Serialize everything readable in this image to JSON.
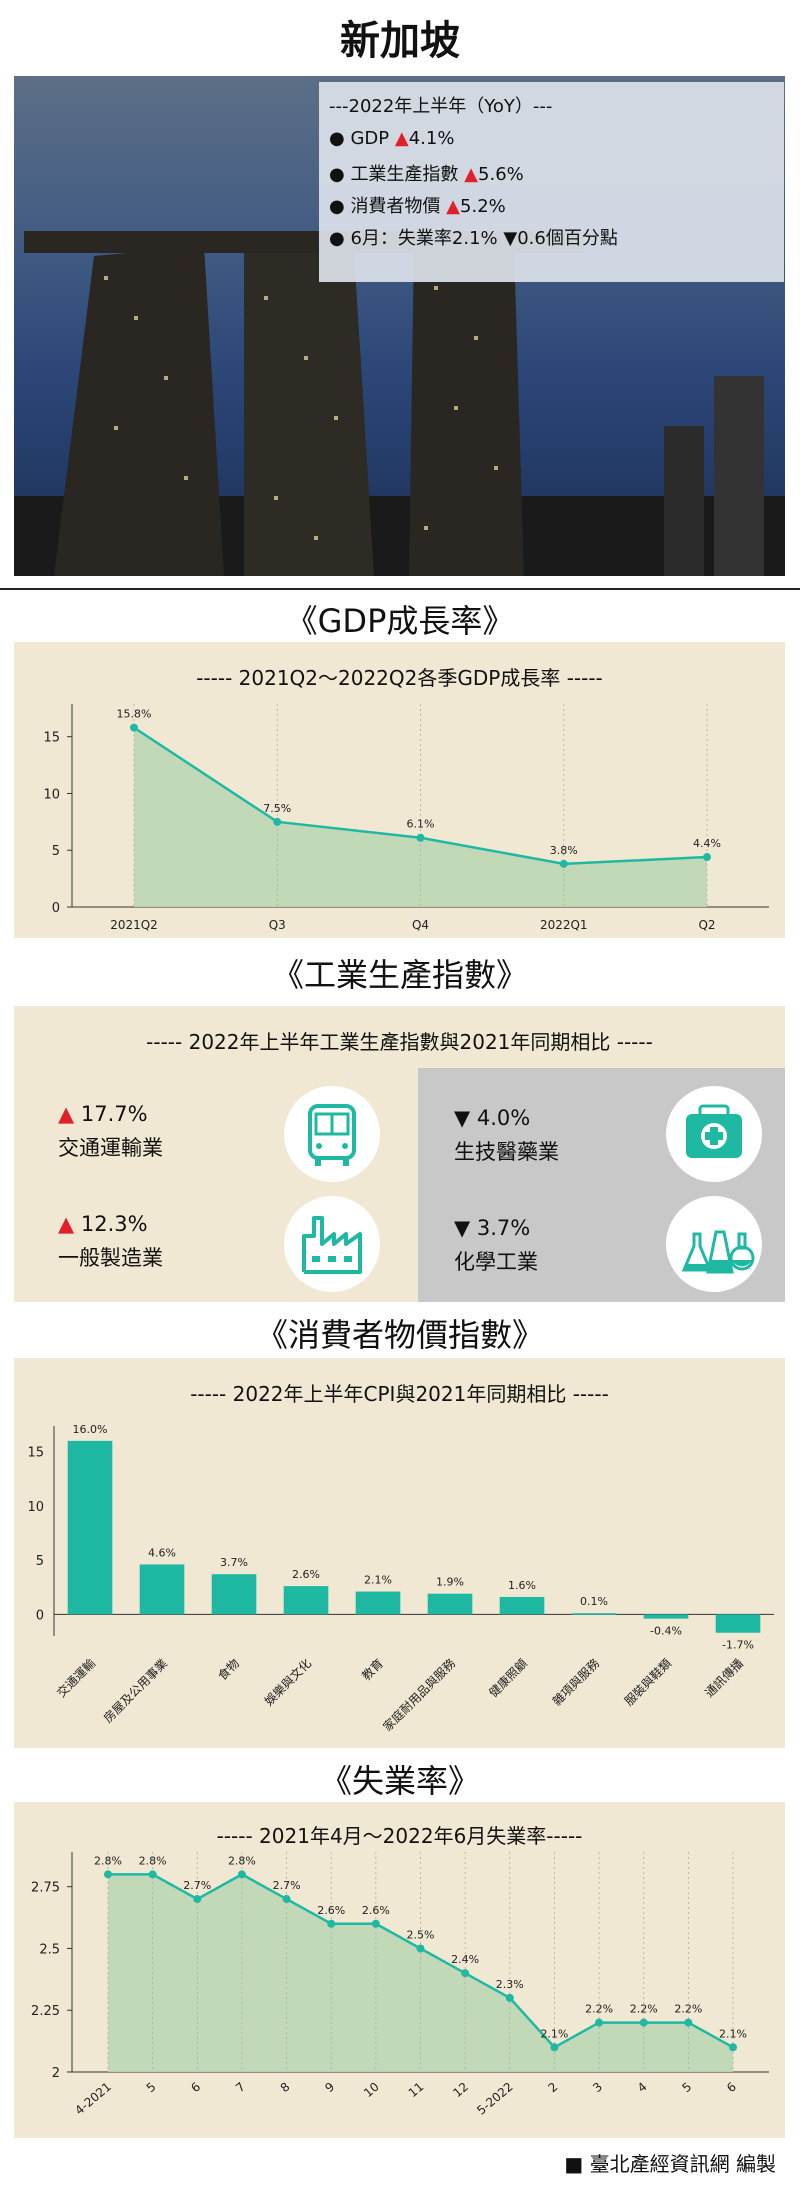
{
  "page_title": "新加坡",
  "summary": {
    "header": "---2022年上半年（YoY）---",
    "items": [
      {
        "label": "GDP",
        "arrow": "▲",
        "value": "4.1%"
      },
      {
        "label": "工業生產指數",
        "arrow": "▲",
        "value": "5.6%"
      },
      {
        "label": "消費者物價",
        "arrow": "▲",
        "value": "5.2%"
      },
      {
        "label": "6月：失業率2.1%",
        "arrow": "▼",
        "value": "0.6個百分點"
      }
    ]
  },
  "sections": {
    "gdp": "《GDP成長率》",
    "industry": "《工業生產指數》",
    "cpi": "《消費者物價指數》",
    "unemployment": "《失業率》"
  },
  "industry_panel": {
    "title": "----- 2022年上半年工業生產指數與2021年同期相比 -----",
    "items": [
      {
        "arrow": "▲",
        "value": "17.7%",
        "label": "交通運輸業",
        "icon": "bus-icon"
      },
      {
        "arrow": "▼",
        "value": "4.0%",
        "label": "生技醫藥業",
        "icon": "medicine-kit-icon"
      },
      {
        "arrow": "▲",
        "value": "12.3%",
        "label": "一般製造業",
        "icon": "factory-icon"
      },
      {
        "arrow": "▼",
        "value": "3.7%",
        "label": "化學工業",
        "icon": "flask-icon"
      }
    ]
  },
  "footer": "■ 臺北產經資訊網 編製",
  "colors": {
    "teal": "#1fb9a3",
    "area": "#bcd7b5",
    "panel": "#f0e8d2",
    "gray": "#c8c8c8",
    "red": "#e0212a"
  },
  "chart_data": [
    {
      "type": "area",
      "title": "----- 2021Q2～2022Q2各季GDP成長率 -----",
      "categories": [
        "2021Q2",
        "Q3",
        "Q4",
        "2022Q1",
        "Q2"
      ],
      "values": [
        15.8,
        7.5,
        6.1,
        3.8,
        4.4
      ],
      "labels": [
        "15.8%",
        "7.5%",
        "6.1%",
        "3.8%",
        "4.4%"
      ],
      "yticks": [
        "0",
        "5",
        "10",
        "15"
      ],
      "ylim": [
        0,
        17
      ]
    },
    {
      "type": "bar",
      "title": "----- 2022年上半年CPI與2021年同期相比 -----",
      "categories": [
        "交通運輸",
        "房屋及公用事業",
        "食物",
        "娛樂與文化",
        "教育",
        "家庭耐用品與服務",
        "健康照顧",
        "雜項與服務",
        "服裝與鞋類",
        "通訊傳播"
      ],
      "values": [
        16.0,
        4.6,
        3.7,
        2.6,
        2.1,
        1.9,
        1.6,
        0.1,
        -0.4,
        -1.7
      ],
      "labels": [
        "16.0%",
        "4.6%",
        "3.7%",
        "2.6%",
        "2.1%",
        "1.9%",
        "1.6%",
        "0.1%",
        "-0.4%",
        "-1.7%"
      ],
      "yticks": [
        "0",
        "5",
        "10",
        "15"
      ],
      "ylim": [
        -2,
        17
      ]
    },
    {
      "type": "area",
      "title": "----- 2021年4月～2022年6月失業率-----",
      "categories": [
        "4-2021",
        "5",
        "6",
        "7",
        "8",
        "9",
        "10",
        "11",
        "12",
        "5-2022",
        "2",
        "3",
        "4",
        "5",
        "6"
      ],
      "values": [
        2.8,
        2.8,
        2.7,
        2.8,
        2.7,
        2.6,
        2.6,
        2.5,
        2.4,
        2.3,
        2.1,
        2.2,
        2.2,
        2.2,
        2.1
      ],
      "labels": [
        "2.8%",
        "2.8%",
        "2.7%",
        "2.8%",
        "2.7%",
        "2.6%",
        "2.6%",
        "2.5%",
        "2.4%",
        "2.3%",
        "2.1%",
        "2.2%",
        "2.2%",
        "2.2%",
        "2.1%"
      ],
      "yticks": [
        "2",
        "2.25",
        "2.5",
        "2.75"
      ],
      "ylim": [
        2,
        2.85
      ]
    }
  ]
}
